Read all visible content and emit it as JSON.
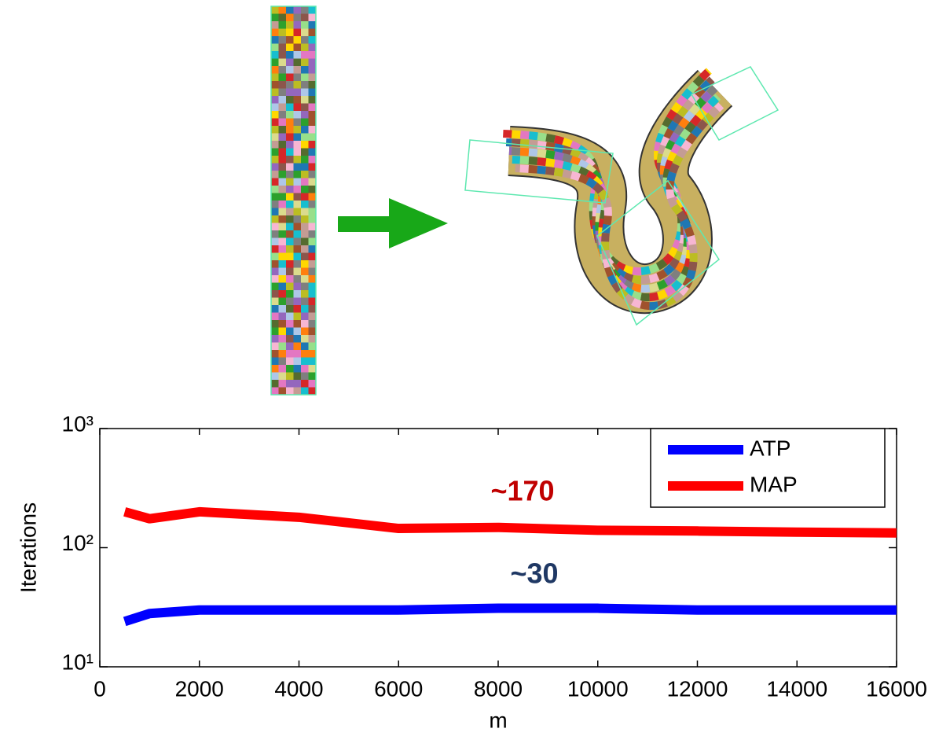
{
  "chart_data": {
    "type": "line",
    "x_label": "m",
    "y_label": "Iterations",
    "x": [
      500,
      1000,
      2000,
      4000,
      6000,
      8000,
      10000,
      12000,
      14000,
      16000
    ],
    "series": [
      {
        "name": "ATP",
        "color": "#0000ff",
        "values": [
          24,
          28,
          30,
          30,
          30,
          31,
          31,
          30,
          30,
          30
        ]
      },
      {
        "name": "MAP",
        "color": "#ff0000",
        "values": [
          200,
          175,
          200,
          180,
          145,
          148,
          140,
          138,
          135,
          133
        ]
      }
    ],
    "xlim": [
      0,
      16000
    ],
    "xticks": [
      0,
      2000,
      4000,
      6000,
      8000,
      10000,
      12000,
      14000,
      16000
    ],
    "ylim": [
      10,
      1000
    ],
    "yticks": [
      {
        "value": 10,
        "label": "10¹"
      },
      {
        "value": 100,
        "label": "10²"
      },
      {
        "value": 1000,
        "label": "10³"
      }
    ],
    "y_scale": "log",
    "grid": false,
    "legend": "upper right",
    "annotations": [
      {
        "text": "~170",
        "color": "#c00000"
      },
      {
        "text": "~30",
        "color": "#1f3864"
      }
    ]
  }
}
